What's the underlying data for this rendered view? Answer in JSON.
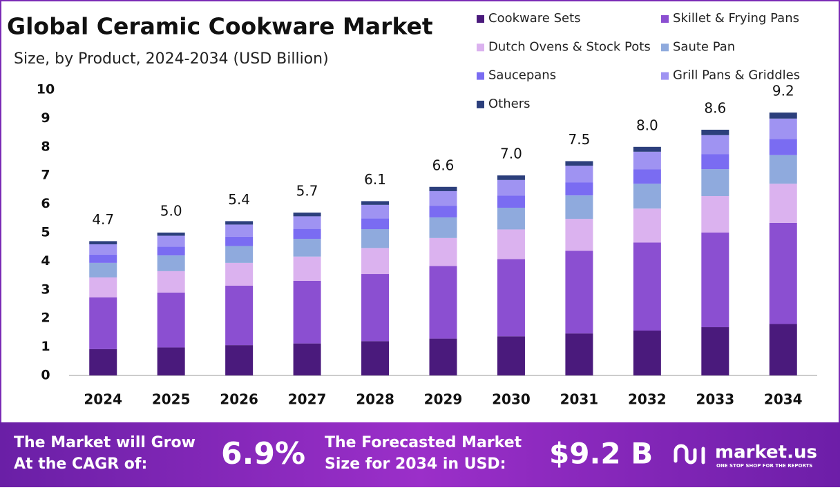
{
  "chart_data": {
    "type": "stacked-bar",
    "title": "Global Ceramic Cookware Market",
    "subtitle": "Size, by Product, 2024-2034 (USD Billion)",
    "categories": [
      "2024",
      "2025",
      "2026",
      "2027",
      "2028",
      "2029",
      "2030",
      "2031",
      "2032",
      "2033",
      "2034"
    ],
    "series": [
      {
        "name": "Cookware Sets",
        "color": "#4a1a7c",
        "values": [
          0.92,
          0.98,
          1.06,
          1.12,
          1.2,
          1.29,
          1.37,
          1.47,
          1.57,
          1.69,
          1.8
        ]
      },
      {
        "name": "Skillet & Frying Pans",
        "color": "#8b4fd1",
        "values": [
          1.81,
          1.92,
          2.08,
          2.19,
          2.35,
          2.54,
          2.7,
          2.89,
          3.08,
          3.31,
          3.54
        ]
      },
      {
        "name": "Dutch Ovens & Stock Pots",
        "color": "#dbb2ef",
        "values": [
          0.7,
          0.75,
          0.8,
          0.85,
          0.91,
          0.98,
          1.04,
          1.12,
          1.19,
          1.28,
          1.37
        ]
      },
      {
        "name": "Saute Pan",
        "color": "#8faadd",
        "values": [
          0.51,
          0.55,
          0.59,
          0.62,
          0.66,
          0.72,
          0.76,
          0.82,
          0.87,
          0.94,
          1.0
        ]
      },
      {
        "name": "Saucepans",
        "color": "#7a6cf2",
        "values": [
          0.29,
          0.31,
          0.33,
          0.35,
          0.38,
          0.41,
          0.43,
          0.46,
          0.5,
          0.53,
          0.57
        ]
      },
      {
        "name": "Grill Pans & Griddles",
        "color": "#9f93f2",
        "values": [
          0.36,
          0.38,
          0.42,
          0.44,
          0.47,
          0.51,
          0.54,
          0.58,
          0.62,
          0.66,
          0.71
        ]
      },
      {
        "name": "Others",
        "color": "#2c3f7c",
        "values": [
          0.11,
          0.11,
          0.12,
          0.13,
          0.13,
          0.15,
          0.16,
          0.16,
          0.17,
          0.19,
          0.21
        ]
      }
    ],
    "totals": {
      "values": [
        4.7,
        5.0,
        5.4,
        5.7,
        6.1,
        6.6,
        7.0,
        7.5,
        8.0,
        8.6,
        9.2
      ],
      "value_labels": [
        "4.7",
        "5.0",
        "5.4",
        "5.7",
        "6.1",
        "6.6",
        "7.0",
        "7.5",
        "8.0",
        "8.6",
        "9.2"
      ]
    },
    "ylim": [
      0,
      10
    ],
    "yticks": [
      0,
      1,
      2,
      3,
      4,
      5,
      6,
      7,
      8,
      9,
      10
    ],
    "grid": false,
    "legend": "top-right"
  },
  "footer": {
    "cagr_label": [
      "The Market will Grow",
      "At the CAGR of:"
    ],
    "cagr_value": "6.9%",
    "size_label": [
      "The Forecasted Market",
      "Size for 2034 in USD:"
    ],
    "size_value": "$9.2 B",
    "brand": "market.us",
    "tagline": "ONE STOP SHOP FOR THE REPORTS"
  }
}
